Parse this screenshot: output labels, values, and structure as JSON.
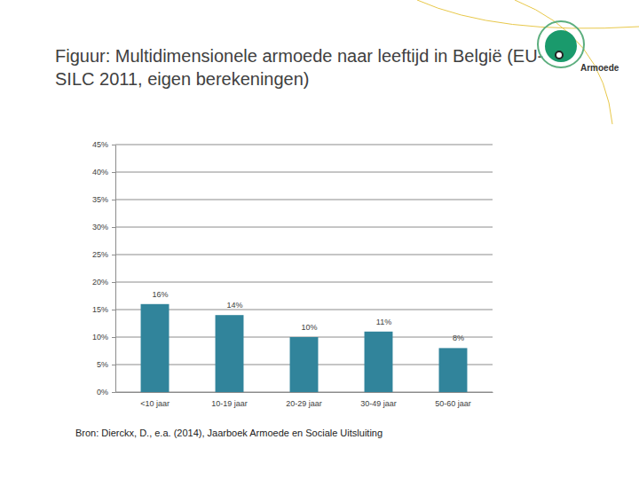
{
  "chart_data": {
    "type": "bar",
    "title": "Figuur: Multidimensionele armoede naar leeftijd in België (EU-SILC 2011, eigen berekeningen)",
    "categories": [
      "<10 jaar",
      "10-19 jaar",
      "20-29 jaar",
      "30-49 jaar",
      "50-60 jaar"
    ],
    "values": [
      16,
      14,
      10,
      11,
      8
    ],
    "value_labels": [
      "16%",
      "14%",
      "10%",
      "11%",
      "8%"
    ],
    "color": "#31849b",
    "ylim": [
      0,
      45
    ],
    "yticks": [
      {
        "value": 0,
        "label": "0%"
      },
      {
        "value": 5,
        "label": "5%"
      },
      {
        "value": 10,
        "label": "10%"
      },
      {
        "value": 15,
        "label": "15%"
      },
      {
        "value": 20,
        "label": "20%"
      },
      {
        "value": 25,
        "label": "25%"
      },
      {
        "value": 30,
        "label": "30%"
      },
      {
        "value": 35,
        "label": "35%"
      },
      {
        "value": 40,
        "label": "40%"
      },
      {
        "value": 45,
        "label": "45%"
      }
    ],
    "grid": true,
    "data_labels": true,
    "annotations": [
      "Bron: Dierckx, D., e.a. (2014), Jaarboek Armoede en Sociale Uitsluiting",
      "Armoede"
    ]
  }
}
